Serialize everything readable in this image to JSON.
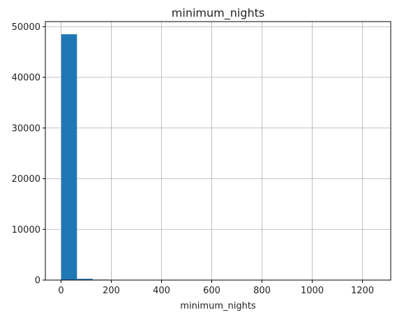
{
  "chart_data": {
    "type": "bar",
    "title": "minimum_nights",
    "xlabel": "minimum_nights",
    "ylabel": "",
    "xlim": [
      -62.4,
      1312.4
    ],
    "ylim": [
      0,
      51000
    ],
    "xticks": [
      0,
      200,
      400,
      600,
      800,
      1000,
      1200
    ],
    "yticks": [
      0,
      10000,
      20000,
      30000,
      40000,
      50000
    ],
    "grid": true,
    "bar_color": "#1f77b4",
    "bins": {
      "start": 1,
      "end": 1250,
      "count": 20
    },
    "values": [
      48500,
      250,
      90,
      70,
      20,
      35,
      5,
      3,
      2,
      2,
      1,
      1,
      1,
      1,
      1,
      1,
      1,
      1,
      1,
      1
    ]
  }
}
